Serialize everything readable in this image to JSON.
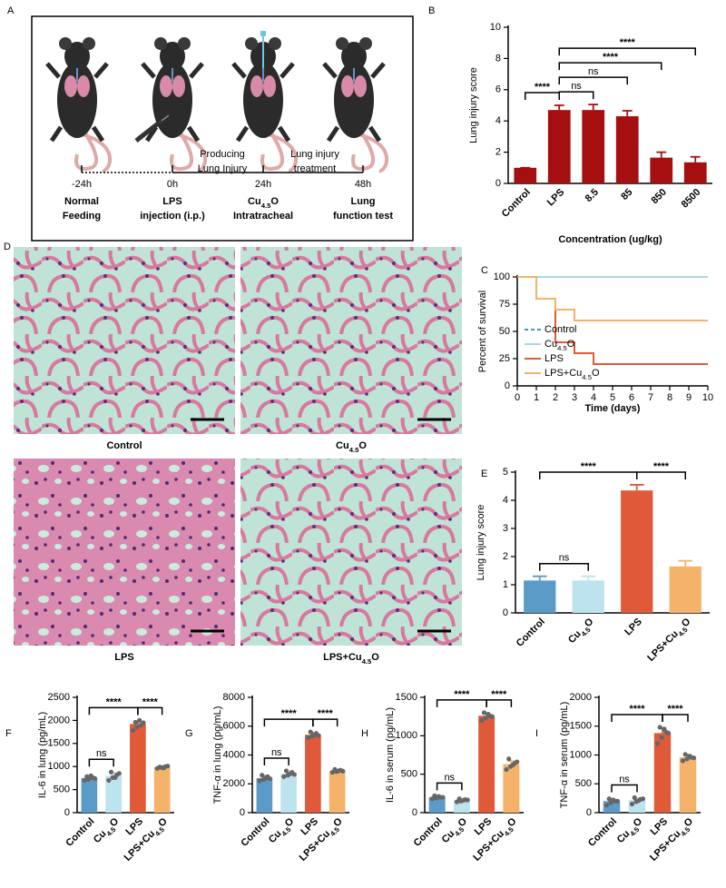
{
  "panel_labels": [
    "A",
    "B",
    "C",
    "D",
    "E",
    "F",
    "G",
    "H",
    "I"
  ],
  "diagram": {
    "timepoints": [
      {
        "time": "-24h",
        "label": [
          "Normal",
          "Feeding"
        ]
      },
      {
        "time": "0h",
        "label": [
          "LPS",
          "injection (i.p.)"
        ]
      },
      {
        "time": "24h",
        "label": [
          "Cu4.5O",
          "Intratracheal"
        ]
      },
      {
        "time": "48h",
        "label": [
          "Lung",
          "function test"
        ]
      }
    ],
    "phases": [
      [
        "Producing",
        "Lung Injury"
      ],
      [
        "Lung injury",
        "treatment"
      ]
    ]
  },
  "histology": {
    "captions": [
      "Control",
      "Cu4.5O",
      "LPS",
      "LPS+Cu4.5O"
    ]
  },
  "chart_data": [
    {
      "type": "bar",
      "ylabel": "Lung injury score",
      "xlabel": "Concentration (ug/kg)",
      "categories": [
        "Control",
        "LPS",
        "8.5",
        "85",
        "850",
        "8500"
      ],
      "values": [
        1,
        4.7,
        4.7,
        4.3,
        1.65,
        1.35
      ],
      "errors": [
        0,
        0.3,
        0.35,
        0.35,
        0.35,
        0.35
      ],
      "color": "#a50f0f",
      "ylim": [
        0,
        10
      ],
      "yticks": [
        0,
        2,
        4,
        6,
        8,
        10
      ],
      "annotations": [
        {
          "text": "****",
          "pair": [
            "Control",
            "LPS"
          ]
        },
        {
          "text": "ns",
          "pair": [
            "LPS",
            "8.5"
          ]
        },
        {
          "text": "ns",
          "pair": [
            "LPS",
            "85"
          ]
        },
        {
          "text": "****",
          "pair": [
            "LPS",
            "850"
          ]
        },
        {
          "text": "****",
          "pair": [
            "LPS",
            "8500"
          ]
        }
      ]
    },
    {
      "type": "line",
      "step": true,
      "ylabel": "Percent of survival",
      "xlabel": "Time (days)",
      "xlim": [
        0,
        10
      ],
      "xticks": [
        0,
        1,
        2,
        3,
        4,
        5,
        6,
        7,
        8,
        9,
        10
      ],
      "ylim": [
        0,
        100
      ],
      "yticks": [
        0,
        25,
        50,
        75,
        100
      ],
      "legend": "lower left",
      "series": [
        {
          "name": "Control",
          "color": "#4a90c8",
          "dashed": true,
          "x": [
            0,
            10
          ],
          "values": [
            100,
            100
          ]
        },
        {
          "name": "Cu4.5O",
          "color": "#a6d9e6",
          "x": [
            0,
            10
          ],
          "values": [
            100,
            100
          ]
        },
        {
          "name": "LPS",
          "color": "#e05a3a",
          "x": [
            0,
            1,
            2,
            3,
            4,
            10
          ],
          "values": [
            100,
            80,
            40,
            30,
            20,
            20
          ]
        },
        {
          "name": "LPS+Cu4.5O",
          "color": "#f5b26b",
          "x": [
            0,
            1,
            2,
            3,
            10
          ],
          "values": [
            100,
            80,
            70,
            60,
            60
          ]
        }
      ]
    },
    {
      "type": "bar",
      "ylabel": "Lung injury score",
      "categories": [
        "Control",
        "Cu4.5O",
        "LPS",
        "LPS+Cu4.5O"
      ],
      "values": [
        1.15,
        1.15,
        4.35,
        1.65
      ],
      "errors": [
        0.15,
        0.15,
        0.2,
        0.2
      ],
      "colors": [
        "#5b9bc8",
        "#bde3ee",
        "#e05a3a",
        "#f5b26b"
      ],
      "ylim": [
        0,
        5
      ],
      "yticks": [
        0,
        1,
        2,
        3,
        4,
        5
      ],
      "annotations": [
        {
          "text": "ns",
          "pair": [
            "Control",
            "Cu4.5O"
          ]
        },
        {
          "text": "****",
          "pair": [
            "Control",
            "LPS"
          ]
        },
        {
          "text": "****",
          "pair": [
            "LPS",
            "LPS+Cu4.5O"
          ]
        }
      ]
    },
    {
      "type": "bar",
      "ylabel": "IL-6 in lung (pg/mL)",
      "categories": [
        "Control",
        "Cu4.5O",
        "LPS",
        "LPS+Cu4.5O"
      ],
      "values": [
        750,
        800,
        1920,
        980
      ],
      "errors": [
        40,
        60,
        60,
        20
      ],
      "points": [
        [
          700,
          720,
          760,
          780,
          800,
          740
        ],
        [
          700,
          760,
          820,
          880,
          760,
          850
        ],
        [
          1780,
          1850,
          1900,
          1960,
          2000,
          1950
        ],
        [
          960,
          980,
          1000,
          990,
          970,
          1010
        ]
      ],
      "colors": [
        "#5b9bc8",
        "#bde3ee",
        "#e05a3a",
        "#f5b26b"
      ],
      "ylim": [
        0,
        2500
      ],
      "yticks": [
        0,
        500,
        1000,
        1500,
        2000,
        2500
      ],
      "annotations": [
        {
          "text": "ns",
          "pair": [
            "Control",
            "Cu4.5O"
          ]
        },
        {
          "text": "****",
          "pair": [
            "Control",
            "LPS"
          ]
        },
        {
          "text": "****",
          "pair": [
            "LPS",
            "LPS+Cu4.5O"
          ]
        }
      ]
    },
    {
      "type": "bar",
      "ylabel": "TNF-α in lung (pg/mL)",
      "categories": [
        "Control",
        "Cu4.5O",
        "LPS",
        "LPS+Cu4.5O"
      ],
      "values": [
        2400,
        2700,
        5400,
        2900
      ],
      "errors": [
        150,
        150,
        120,
        80
      ],
      "points": [
        [
          2200,
          2300,
          2500,
          2600,
          2400,
          2350
        ],
        [
          2500,
          2600,
          2800,
          2900,
          2700,
          2650
        ],
        [
          5200,
          5300,
          5500,
          5600,
          5400,
          5350
        ],
        [
          2800,
          2850,
          2950,
          3000,
          2900,
          2880
        ]
      ],
      "colors": [
        "#5b9bc8",
        "#bde3ee",
        "#e05a3a",
        "#f5b26b"
      ],
      "ylim": [
        0,
        8000
      ],
      "yticks": [
        0,
        2000,
        4000,
        6000,
        8000
      ],
      "annotations": [
        {
          "text": "ns",
          "pair": [
            "Control",
            "Cu4.5O"
          ]
        },
        {
          "text": "****",
          "pair": [
            "Control",
            "LPS"
          ]
        },
        {
          "text": "****",
          "pair": [
            "LPS",
            "LPS+Cu4.5O"
          ]
        }
      ]
    },
    {
      "type": "bar",
      "ylabel": "IL-6 in serum (pg/mL)",
      "categories": [
        "Control",
        "Cu4.5O",
        "LPS",
        "LPS+Cu4.5O"
      ],
      "values": [
        200,
        160,
        1260,
        630
      ],
      "errors": [
        20,
        20,
        30,
        40
      ],
      "points": [
        [
          180,
          190,
          200,
          220,
          210,
          200
        ],
        [
          140,
          150,
          170,
          180,
          160,
          165
        ],
        [
          1200,
          1230,
          1260,
          1300,
          1280,
          1250
        ],
        [
          560,
          600,
          640,
          700,
          620,
          660
        ]
      ],
      "colors": [
        "#5b9bc8",
        "#bde3ee",
        "#e05a3a",
        "#f5b26b"
      ],
      "ylim": [
        0,
        1500
      ],
      "yticks": [
        0,
        500,
        1000,
        1500
      ],
      "annotations": [
        {
          "text": "ns",
          "pair": [
            "Control",
            "Cu4.5O"
          ]
        },
        {
          "text": "****",
          "pair": [
            "Control",
            "LPS"
          ]
        },
        {
          "text": "****",
          "pair": [
            "LPS",
            "LPS+Cu4.5O"
          ]
        }
      ]
    },
    {
      "type": "bar",
      "ylabel": "TNF-α in serum (pg/mL)",
      "categories": [
        "Control",
        "Cu4.5O",
        "LPS",
        "LPS+Cu4.5O"
      ],
      "values": [
        200,
        220,
        1380,
        960
      ],
      "errors": [
        30,
        30,
        90,
        40
      ],
      "points": [
        [
          130,
          170,
          200,
          240,
          220,
          200
        ],
        [
          150,
          190,
          230,
          260,
          210,
          240
        ],
        [
          1200,
          1300,
          1400,
          1480,
          1450,
          1380
        ],
        [
          900,
          930,
          960,
          1010,
          980,
          950
        ]
      ],
      "colors": [
        "#5b9bc8",
        "#bde3ee",
        "#e05a3a",
        "#f5b26b"
      ],
      "ylim": [
        0,
        2000
      ],
      "yticks": [
        0,
        500,
        1000,
        1500,
        2000
      ],
      "annotations": [
        {
          "text": "ns",
          "pair": [
            "Control",
            "Cu4.5O"
          ]
        },
        {
          "text": "****",
          "pair": [
            "Control",
            "LPS"
          ]
        },
        {
          "text": "****",
          "pair": [
            "LPS",
            "LPS+Cu4.5O"
          ]
        }
      ]
    }
  ]
}
